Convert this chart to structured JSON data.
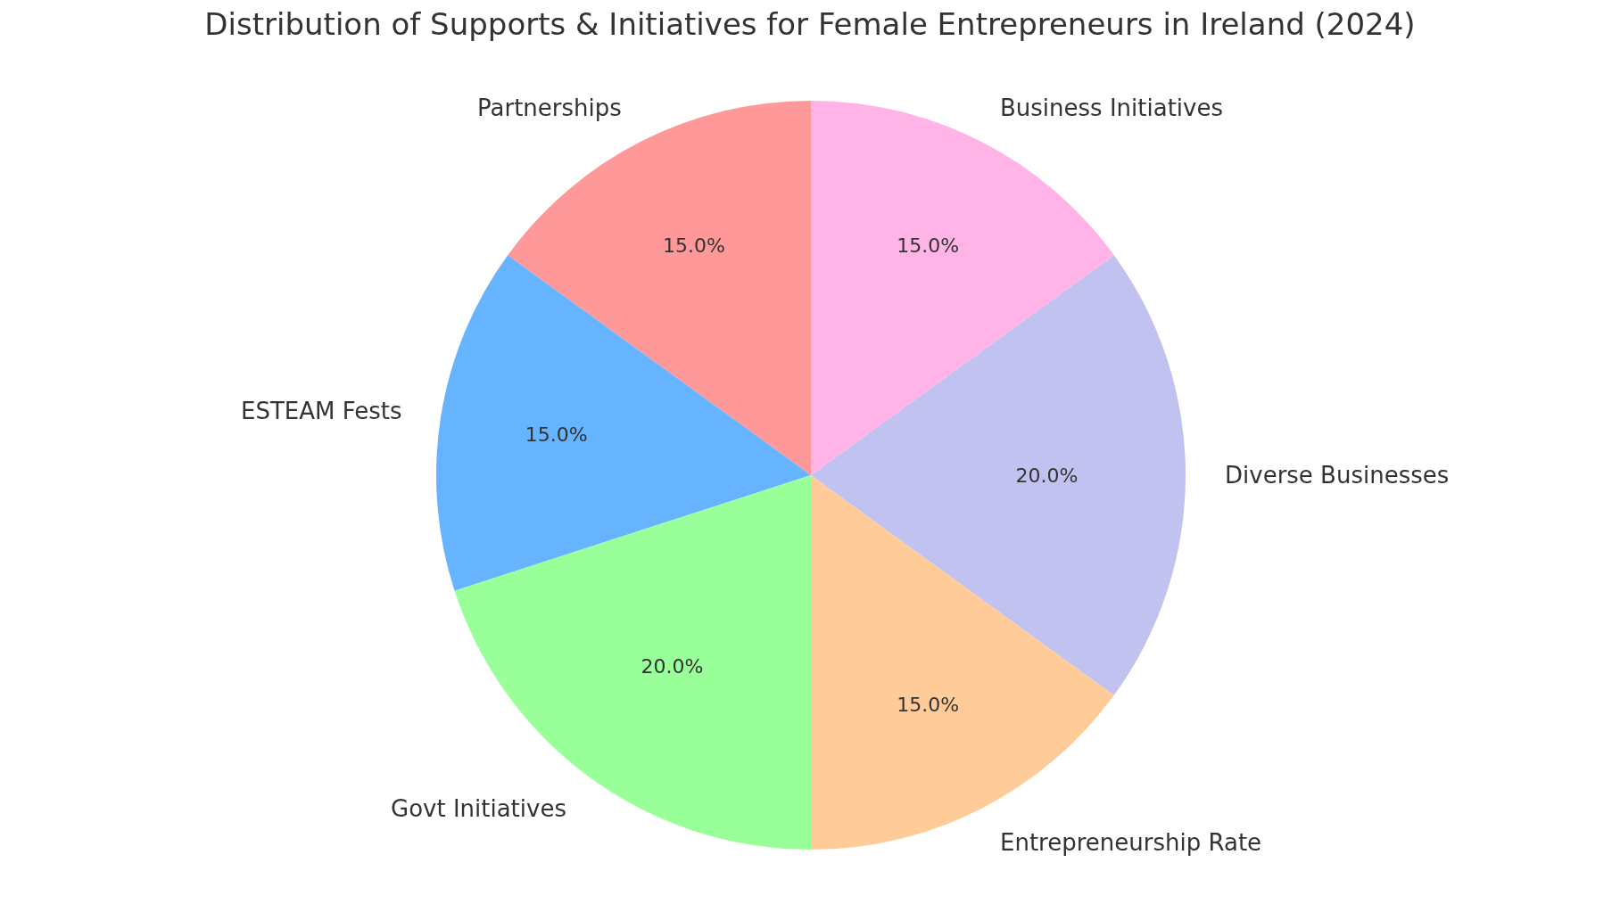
{
  "chart_data": {
    "type": "pie",
    "title": "Distribution of Supports & Initiatives for Female Entrepreneurs in Ireland (2024)",
    "categories": [
      "Partnerships",
      "ESTEAM Fests",
      "Govt Initiatives",
      "Entrepreneurship Rate",
      "Diverse Businesses",
      "Business Initiatives"
    ],
    "values": [
      15,
      15,
      20,
      15,
      20,
      15
    ],
    "value_labels": [
      "15.0%",
      "15.0%",
      "20.0%",
      "15.0%",
      "20.0%",
      "15.0%"
    ],
    "colors": [
      "#ff9999",
      "#66b3ff",
      "#99ff99",
      "#ffcc99",
      "#c2c2f0",
      "#ffb3e6"
    ]
  }
}
